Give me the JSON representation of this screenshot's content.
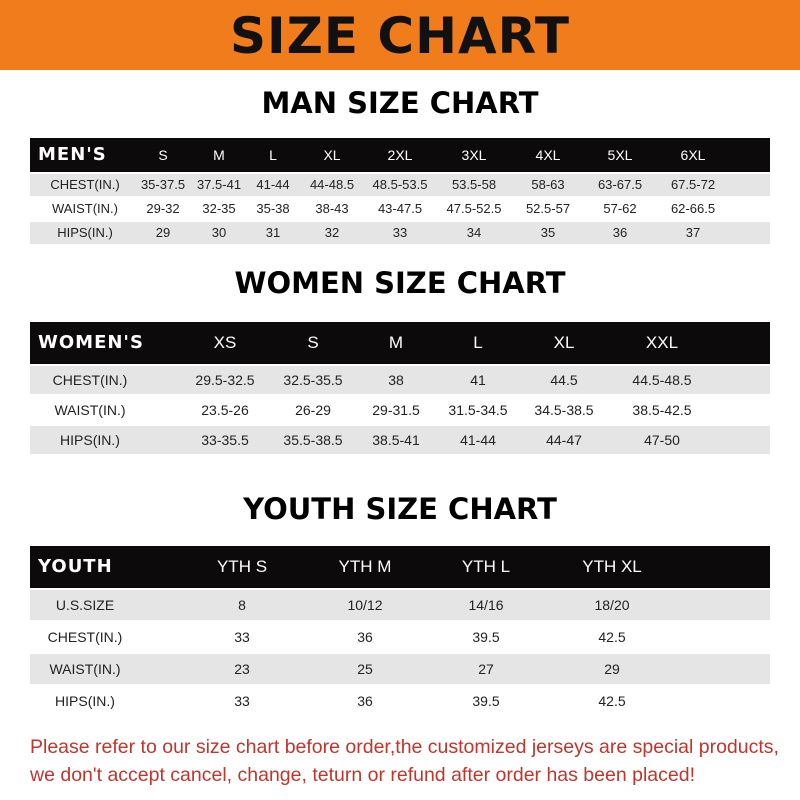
{
  "banner": {
    "title": "SIZE CHART",
    "color": "#f07c1c"
  },
  "men": {
    "title": "MAN SIZE CHART",
    "header": [
      "MEN'S",
      "S",
      "M",
      "L",
      "XL",
      "2XL",
      "3XL",
      "4XL",
      "5XL",
      "6XL"
    ],
    "rows": [
      [
        "CHEST(IN.)",
        "35-37.5",
        "37.5-41",
        "41-44",
        "44-48.5",
        "48.5-53.5",
        "53.5-58",
        "58-63",
        "63-67.5",
        "67.5-72"
      ],
      [
        "WAIST(IN.)",
        "29-32",
        "32-35",
        "35-38",
        "38-43",
        "43-47.5",
        "47.5-52.5",
        "52.5-57",
        "57-62",
        "62-66.5"
      ],
      [
        "HIPS(IN.)",
        "29",
        "30",
        "31",
        "32",
        "33",
        "34",
        "35",
        "36",
        "37"
      ]
    ]
  },
  "women": {
    "title": "WOMEN SIZE CHART",
    "header": [
      "WOMEN'S",
      "XS",
      "S",
      "M",
      "L",
      "XL",
      "XXL"
    ],
    "rows": [
      [
        "CHEST(IN.)",
        "29.5-32.5",
        "32.5-35.5",
        "38",
        "41",
        "44.5",
        "44.5-48.5"
      ],
      [
        "WAIST(IN.)",
        "23.5-26",
        "26-29",
        "29-31.5",
        "31.5-34.5",
        "34.5-38.5",
        "38.5-42.5"
      ],
      [
        "HIPS(IN.)",
        "33-35.5",
        "35.5-38.5",
        "38.5-41",
        "41-44",
        "44-47",
        "47-50"
      ]
    ]
  },
  "youth": {
    "title": "YOUTH SIZE CHART",
    "header": [
      "YOUTH",
      "YTH S",
      "YTH M",
      "YTH L",
      "YTH XL"
    ],
    "rows": [
      [
        "U.S.SIZE",
        "8",
        "10/12",
        "14/16",
        "18/20"
      ],
      [
        "CHEST(IN.)",
        "33",
        "36",
        "39.5",
        "42.5"
      ],
      [
        "WAIST(IN.)",
        "23",
        "25",
        "27",
        "29"
      ],
      [
        "HIPS(IN.)",
        "33",
        "36",
        "39.5",
        "42.5"
      ]
    ]
  },
  "note": {
    "line1": "Please refer to our size chart before order,the customized jerseys are special products,",
    "line2": "we don't accept cancel, change, teturn or refund after order has been placed!",
    "color": "#c0352c"
  }
}
